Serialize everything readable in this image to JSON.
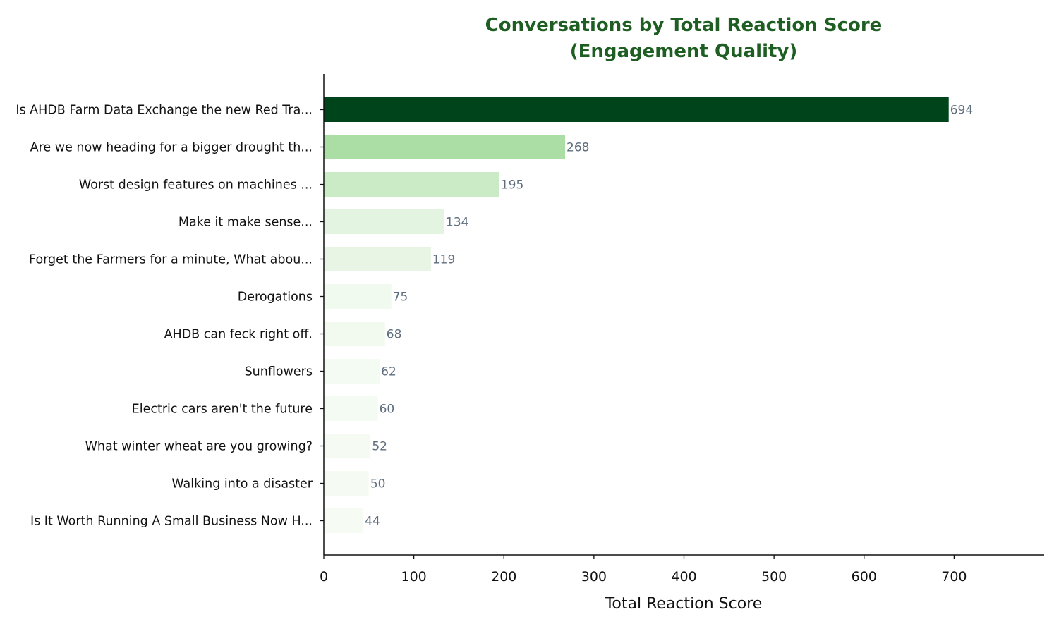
{
  "chart_data": {
    "type": "bar",
    "orientation": "horizontal",
    "title": "Conversations by Total Reaction Score (Engagement Quality)",
    "title_lines": [
      "Conversations by Total Reaction Score",
      "(Engagement Quality)"
    ],
    "xlabel": "Total Reaction Score",
    "ylabel": "",
    "xlim": [
      0,
      800
    ],
    "xticks": [
      0,
      100,
      200,
      300,
      400,
      500,
      600,
      700
    ],
    "grid": false,
    "categories": [
      "Is AHDB Farm Data Exchange the new Red Tra...",
      "Are we now heading for a bigger drought th...",
      "Worst design features on machines ...",
      "Make it make sense...",
      "Forget the Farmers for a minute, What abou...",
      "Derogations",
      "AHDB can feck right off.",
      "Sunflowers",
      "Electric cars aren't the future",
      "What winter wheat are you growing?",
      "Walking into a disaster",
      "Is It Worth Running A Small Business Now H..."
    ],
    "values": [
      694,
      268,
      195,
      134,
      119,
      75,
      68,
      62,
      60,
      52,
      50,
      44
    ],
    "bar_colors": [
      "#00441b",
      "#aadea5",
      "#cbeac6",
      "#e3f4e0",
      "#e8f5e4",
      "#f1faef",
      "#f2faf0",
      "#f3fbf2",
      "#f4fbf2",
      "#f5fbf3",
      "#f5fbf3",
      "#f6fcf4"
    ],
    "title_color": "#1e5e23",
    "value_label_color": "#5d6d7e"
  }
}
